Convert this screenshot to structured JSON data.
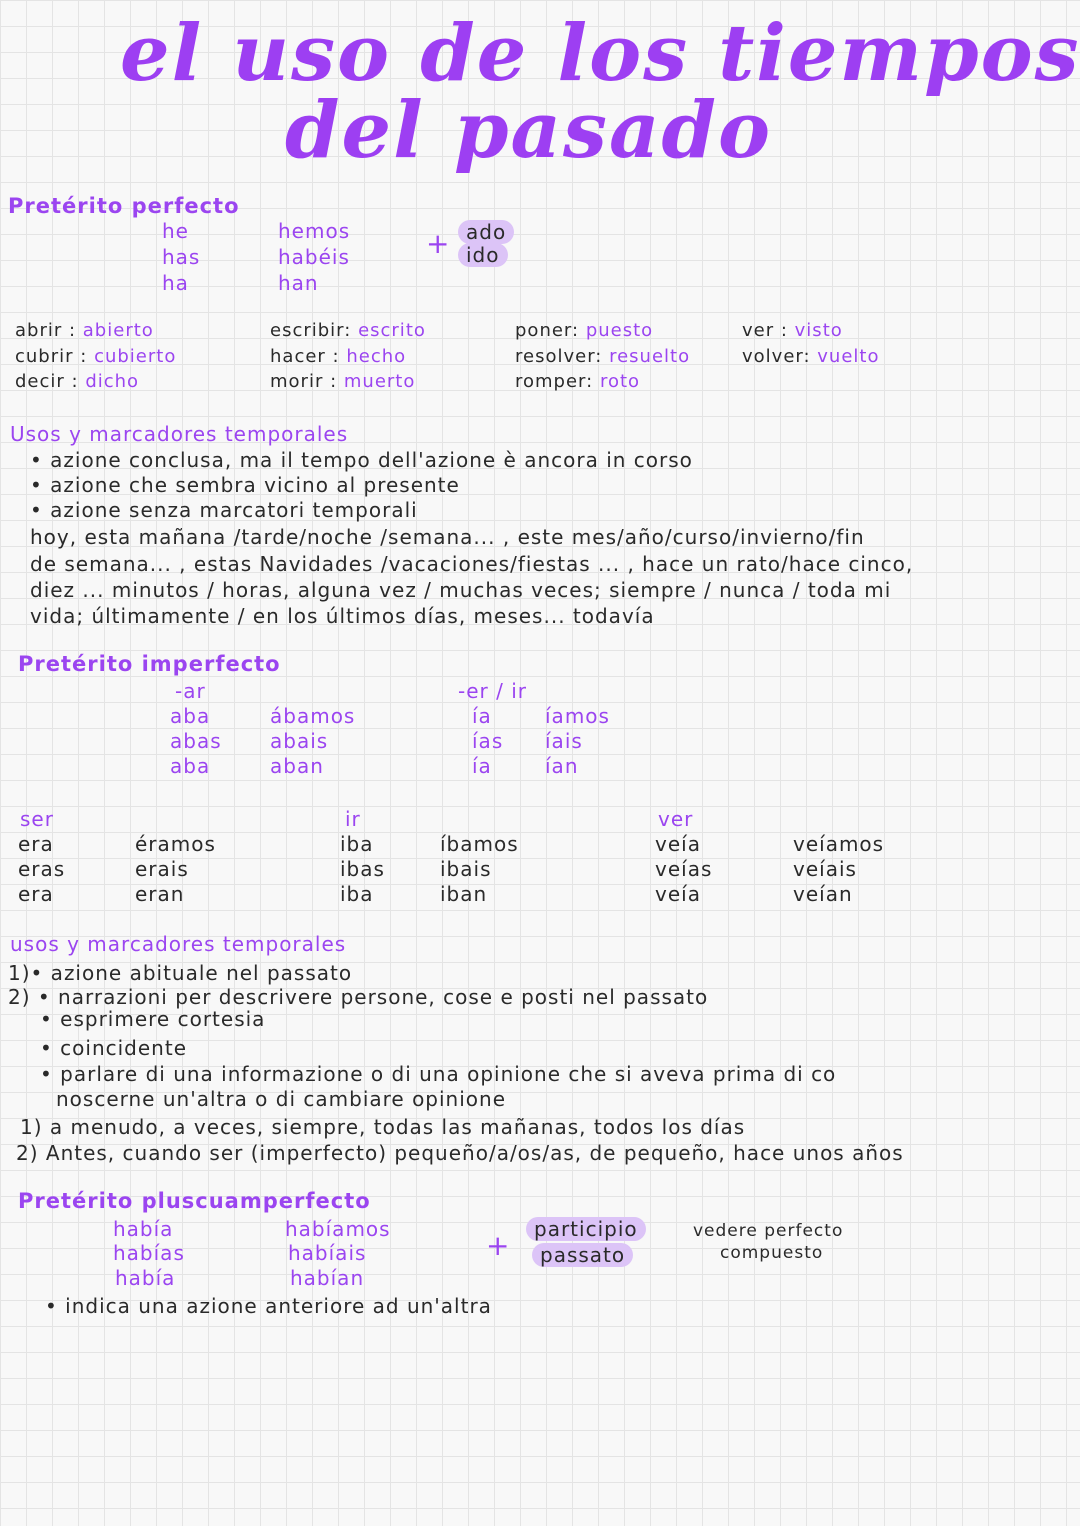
{
  "title": {
    "line1": "el uso de los tiempos",
    "line2": "del pasado"
  },
  "colors": {
    "accent": "#9b45f0",
    "highlight": "#dcc4f7",
    "ink": "#2a2a2a"
  },
  "perfecto": {
    "heading": "Pretérito perfecto",
    "aux_singular": [
      "he",
      "has",
      "ha"
    ],
    "aux_plural": [
      "hemos",
      "habéis",
      "han"
    ],
    "plus": "+",
    "endings": [
      "ado",
      "ido"
    ],
    "irregulars": [
      [
        {
          "verb": "abrir :",
          "part": "abierto"
        },
        {
          "verb": "cubrir :",
          "part": "cubierto"
        },
        {
          "verb": "decir :",
          "part": "dicho"
        }
      ],
      [
        {
          "verb": "escribir:",
          "part": "escrito"
        },
        {
          "verb": "hacer :",
          "part": "hecho"
        },
        {
          "verb": "morir :",
          "part": "muerto"
        }
      ],
      [
        {
          "verb": "poner:",
          "part": "puesto"
        },
        {
          "verb": "resolver:",
          "part": "resuelto"
        },
        {
          "verb": "romper:",
          "part": "roto"
        }
      ],
      [
        {
          "verb": "ver :",
          "part": "visto"
        },
        {
          "verb": "volver:",
          "part": "vuelto"
        }
      ]
    ],
    "usos_heading": "Usos y marcadores temporales",
    "usos": [
      "• azione conclusa, ma il tempo dell'azione è ancora in corso",
      "• azione che sembra vicino al presente",
      "• azione senza marcatori temporali"
    ],
    "marcadores": [
      "hoy, esta mañana /tarde/noche /semana... , este mes/año/curso/invierno/fin",
      "de semana... , estas Navidades /vacaciones/fiestas ... , hace un rato/hace cinco,",
      "diez ... minutos / horas, alguna vez / muchas veces; siempre / nunca / toda mi",
      "vida; últimamente / en los últimos días, meses... todavía"
    ]
  },
  "imperfecto": {
    "heading": "Pretérito imperfecto",
    "ar": {
      "label": "-ar",
      "singular": [
        "aba",
        "abas",
        "aba"
      ],
      "plural": [
        "ábamos",
        "abais",
        "aban"
      ]
    },
    "erir": {
      "label": "-er / ir",
      "singular": [
        "ía",
        "ías",
        "ía"
      ],
      "plural": [
        "íamos",
        "íais",
        "ían"
      ]
    },
    "ser": {
      "label": "ser",
      "singular": [
        "era",
        "eras",
        "era"
      ],
      "plural": [
        "éramos",
        "erais",
        "eran"
      ]
    },
    "ir": {
      "label": "ir",
      "singular": [
        "iba",
        "ibas",
        "iba"
      ],
      "plural": [
        "íbamos",
        "ibais",
        "iban"
      ]
    },
    "ver": {
      "label": "ver",
      "singular": [
        "veía",
        "veías",
        "veía"
      ],
      "plural": [
        "veíamos",
        "veíais",
        "veían"
      ]
    },
    "usos_heading": "usos y marcadores temporales",
    "usos": [
      "1)• azione abituale nel passato",
      "2) • narrazioni per descrivere persone, cose e posti nel passato",
      "• esprimere cortesia",
      "• coincidente",
      "• parlare di una informazione o di una opinione che si aveva prima di co",
      "noscerne un'altra o di cambiare opinione"
    ],
    "marcadores": [
      "1) a menudo, a veces, siempre, todas las mañanas, todos los días",
      "2) Antes, cuando ser (imperfecto) pequeño/a/os/as, de pequeño, hace unos años"
    ]
  },
  "pluscuamperfecto": {
    "heading": "Pretérito pluscuamperfecto",
    "singular": [
      "había",
      "habías",
      "había"
    ],
    "plural": [
      "habíamos",
      "habíais",
      "habían"
    ],
    "plus": "+",
    "participio": [
      "participio",
      "passato"
    ],
    "note": [
      "vedere perfecto",
      "compuesto"
    ],
    "uso": "• indica una azione anteriore ad un'altra"
  }
}
